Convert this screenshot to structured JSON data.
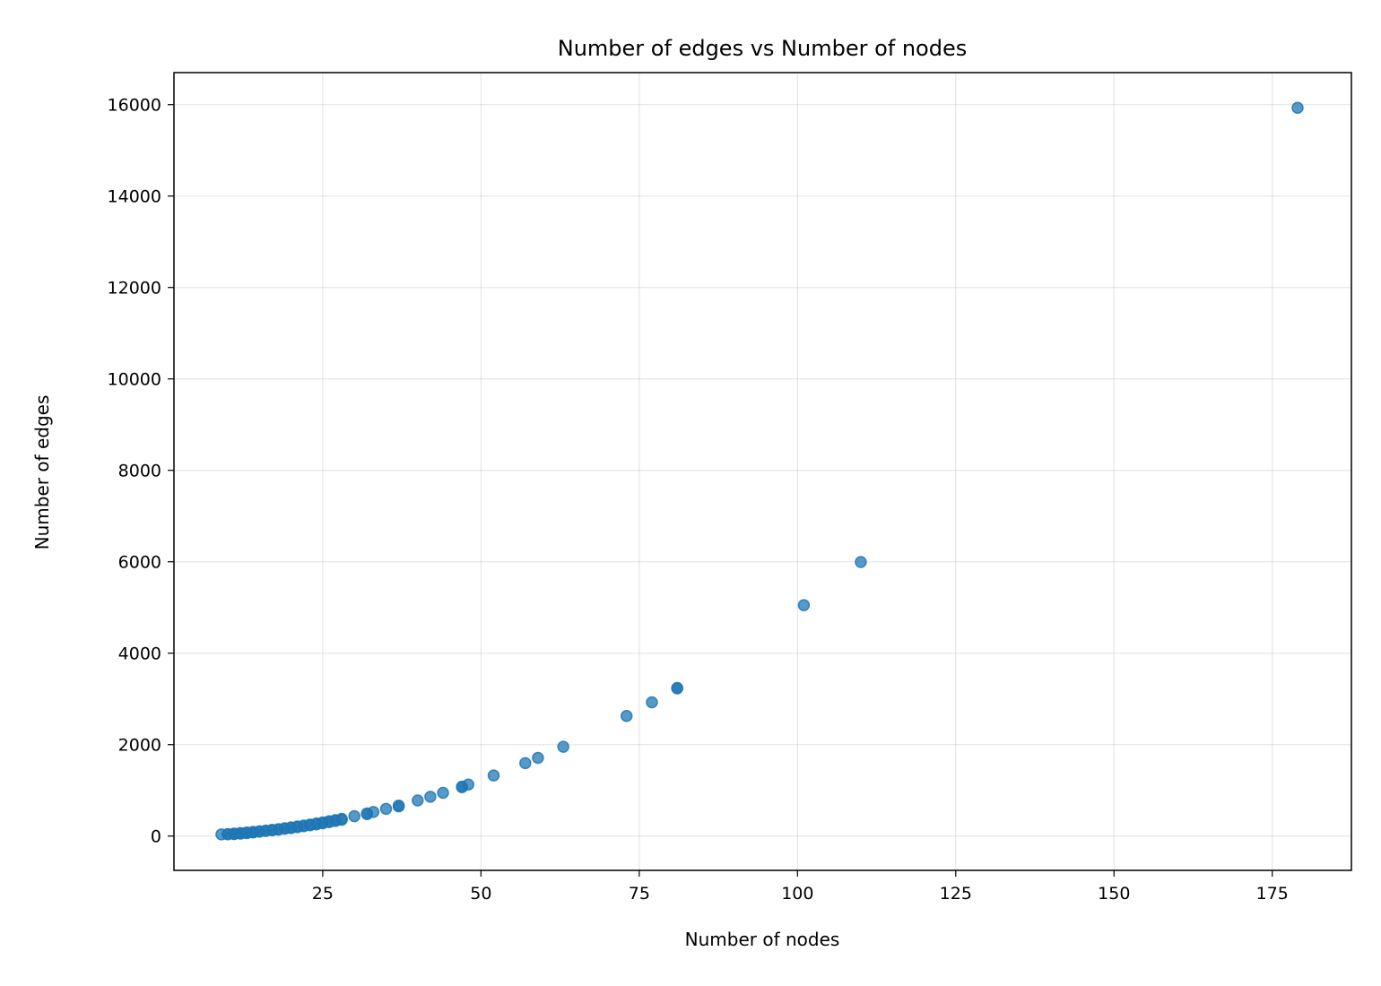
{
  "chart_data": {
    "type": "scatter",
    "title": "Number of edges vs Number of nodes",
    "xlabel": "Number of nodes",
    "ylabel": "Number of edges",
    "xlim": [
      1.5,
      187.5
    ],
    "ylim": [
      -750,
      16700
    ],
    "xticks": [
      25,
      50,
      75,
      100,
      125,
      150,
      175
    ],
    "yticks": [
      0,
      2000,
      4000,
      6000,
      8000,
      10000,
      12000,
      14000,
      16000
    ],
    "grid": true,
    "legend": "none",
    "color": "#1f77b4",
    "series": [
      {
        "x": [
          9,
          10,
          10,
          11,
          11,
          11,
          12,
          12,
          12,
          13,
          13,
          13,
          14,
          14,
          14,
          15,
          15,
          16,
          16,
          17,
          17,
          18,
          18,
          19,
          19,
          20,
          20,
          21,
          21,
          22,
          22,
          23,
          23,
          24,
          24,
          25,
          25,
          26,
          26,
          27,
          27,
          28,
          28,
          30,
          32,
          32,
          33,
          35,
          37,
          37,
          40,
          42,
          44,
          47,
          47,
          48,
          52,
          57,
          59,
          63,
          73,
          77,
          81,
          81,
          101,
          110,
          179
        ],
        "y": [
          36,
          45,
          40,
          55,
          50,
          45,
          66,
          60,
          55,
          78,
          70,
          65,
          91,
          85,
          80,
          105,
          95,
          120,
          110,
          136,
          125,
          153,
          140,
          171,
          160,
          190,
          175,
          210,
          195,
          231,
          215,
          253,
          235,
          276,
          255,
          300,
          280,
          325,
          305,
          351,
          330,
          378,
          355,
          435,
          496,
          480,
          528,
          595,
          666,
          650,
          780,
          861,
          946,
          1081,
          1070,
          1128,
          1326,
          1596,
          1711,
          1953,
          2628,
          2926,
          3240,
          3230,
          5050,
          5995,
          15931
        ]
      }
    ]
  }
}
